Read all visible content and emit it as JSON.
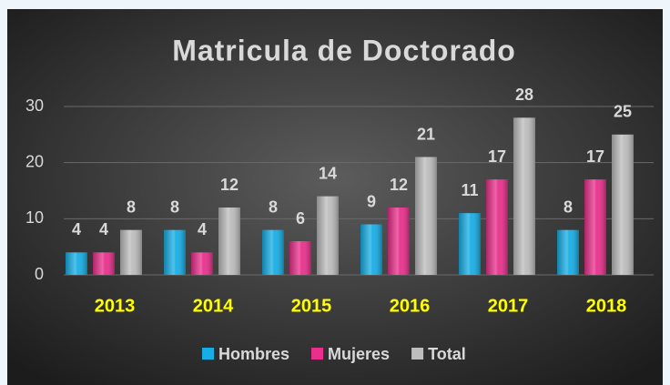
{
  "chart_data": {
    "type": "bar",
    "title": "Matricula de Doctorado",
    "categories": [
      "2013",
      "2014",
      "2015",
      "2016",
      "2017",
      "2018"
    ],
    "series": [
      {
        "name": "Hombres",
        "color": "#16aee6",
        "values": [
          4,
          8,
          8,
          9,
          11,
          8
        ]
      },
      {
        "name": "Mujeres",
        "color": "#ea2f8c",
        "values": [
          4,
          4,
          6,
          12,
          17,
          17
        ]
      },
      {
        "name": "Total",
        "color": "#bdbdbd",
        "values": [
          8,
          12,
          14,
          21,
          28,
          25
        ]
      }
    ],
    "ylim": [
      0,
      30
    ],
    "yticks": [
      0,
      10,
      20,
      30
    ],
    "grid": true,
    "legend": "bottom"
  }
}
